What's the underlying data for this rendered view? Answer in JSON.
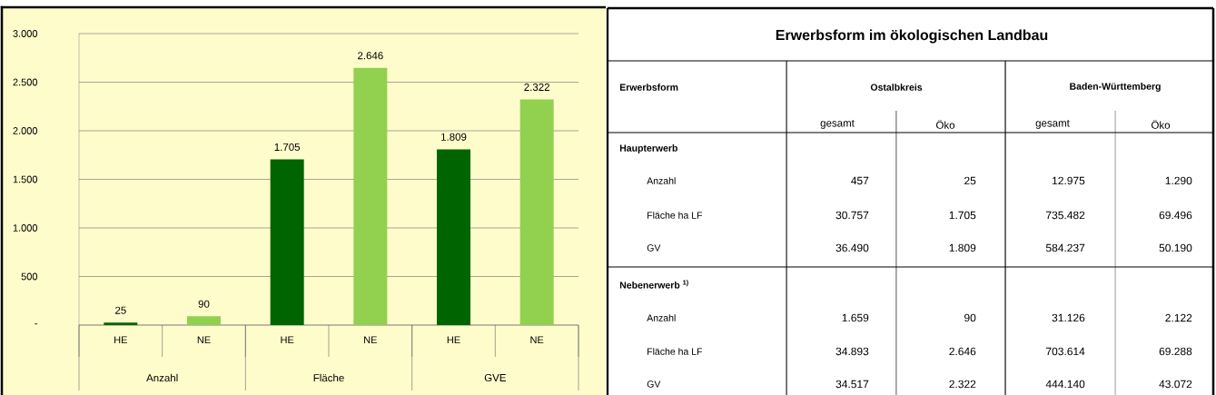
{
  "chart_data": [
    {
      "type": "bar",
      "categories": [
        "HE",
        "NE",
        "HE",
        "NE",
        "HE",
        "NE"
      ],
      "values": [
        25,
        90,
        1705,
        2646,
        1809,
        2322
      ],
      "colors": [
        "#006400",
        "#92d050",
        "#006400",
        "#92d050",
        "#006400",
        "#92d050"
      ],
      "value_labels": [
        "25",
        "90",
        "1.705",
        "2.646",
        "1.809",
        "2.322"
      ],
      "ylim": [
        0,
        3000
      ],
      "yticks": [
        {
          "value": 0,
          "label": "-"
        },
        500,
        {
          "value": 1000,
          "label": "1.000"
        },
        {
          "value": 1500,
          "label": "1.500"
        },
        {
          "value": 2000,
          "label": "2.000"
        },
        {
          "value": 2500,
          "label": "2.500"
        },
        {
          "value": 3000,
          "label": "3.000"
        }
      ],
      "grid": "y",
      "annotations": [
        "Anzahl",
        "Fläche",
        "GVE"
      ]
    },
    {
      "type": "other",
      "title": "Erwerbsform im ökologischen Landbau",
      "annotations": [
        "Erwerbsform",
        "Ostalbkreis",
        "Baden-Württemberg",
        "gesamt",
        "Öko",
        "gesamt",
        "Öko",
        "Haupterwerb",
        "Anzahl",
        "457",
        "25",
        "12.975",
        "1.290",
        "Fläche ha LF",
        "30.757",
        "1.705",
        "735.482",
        "69.496",
        "GV",
        "36.490",
        "1.809",
        "584.237",
        "50.190",
        "Nebenerwerb $^{1)}$",
        "Anzahl",
        "1.659",
        "90",
        "31.126",
        "2.122",
        "Fläche ha LF",
        "34.893",
        "2.646",
        "703.614",
        "69.288",
        "GV",
        "34.517",
        "2.322",
        "444.140",
        "43.072"
      ]
    }
  ]
}
